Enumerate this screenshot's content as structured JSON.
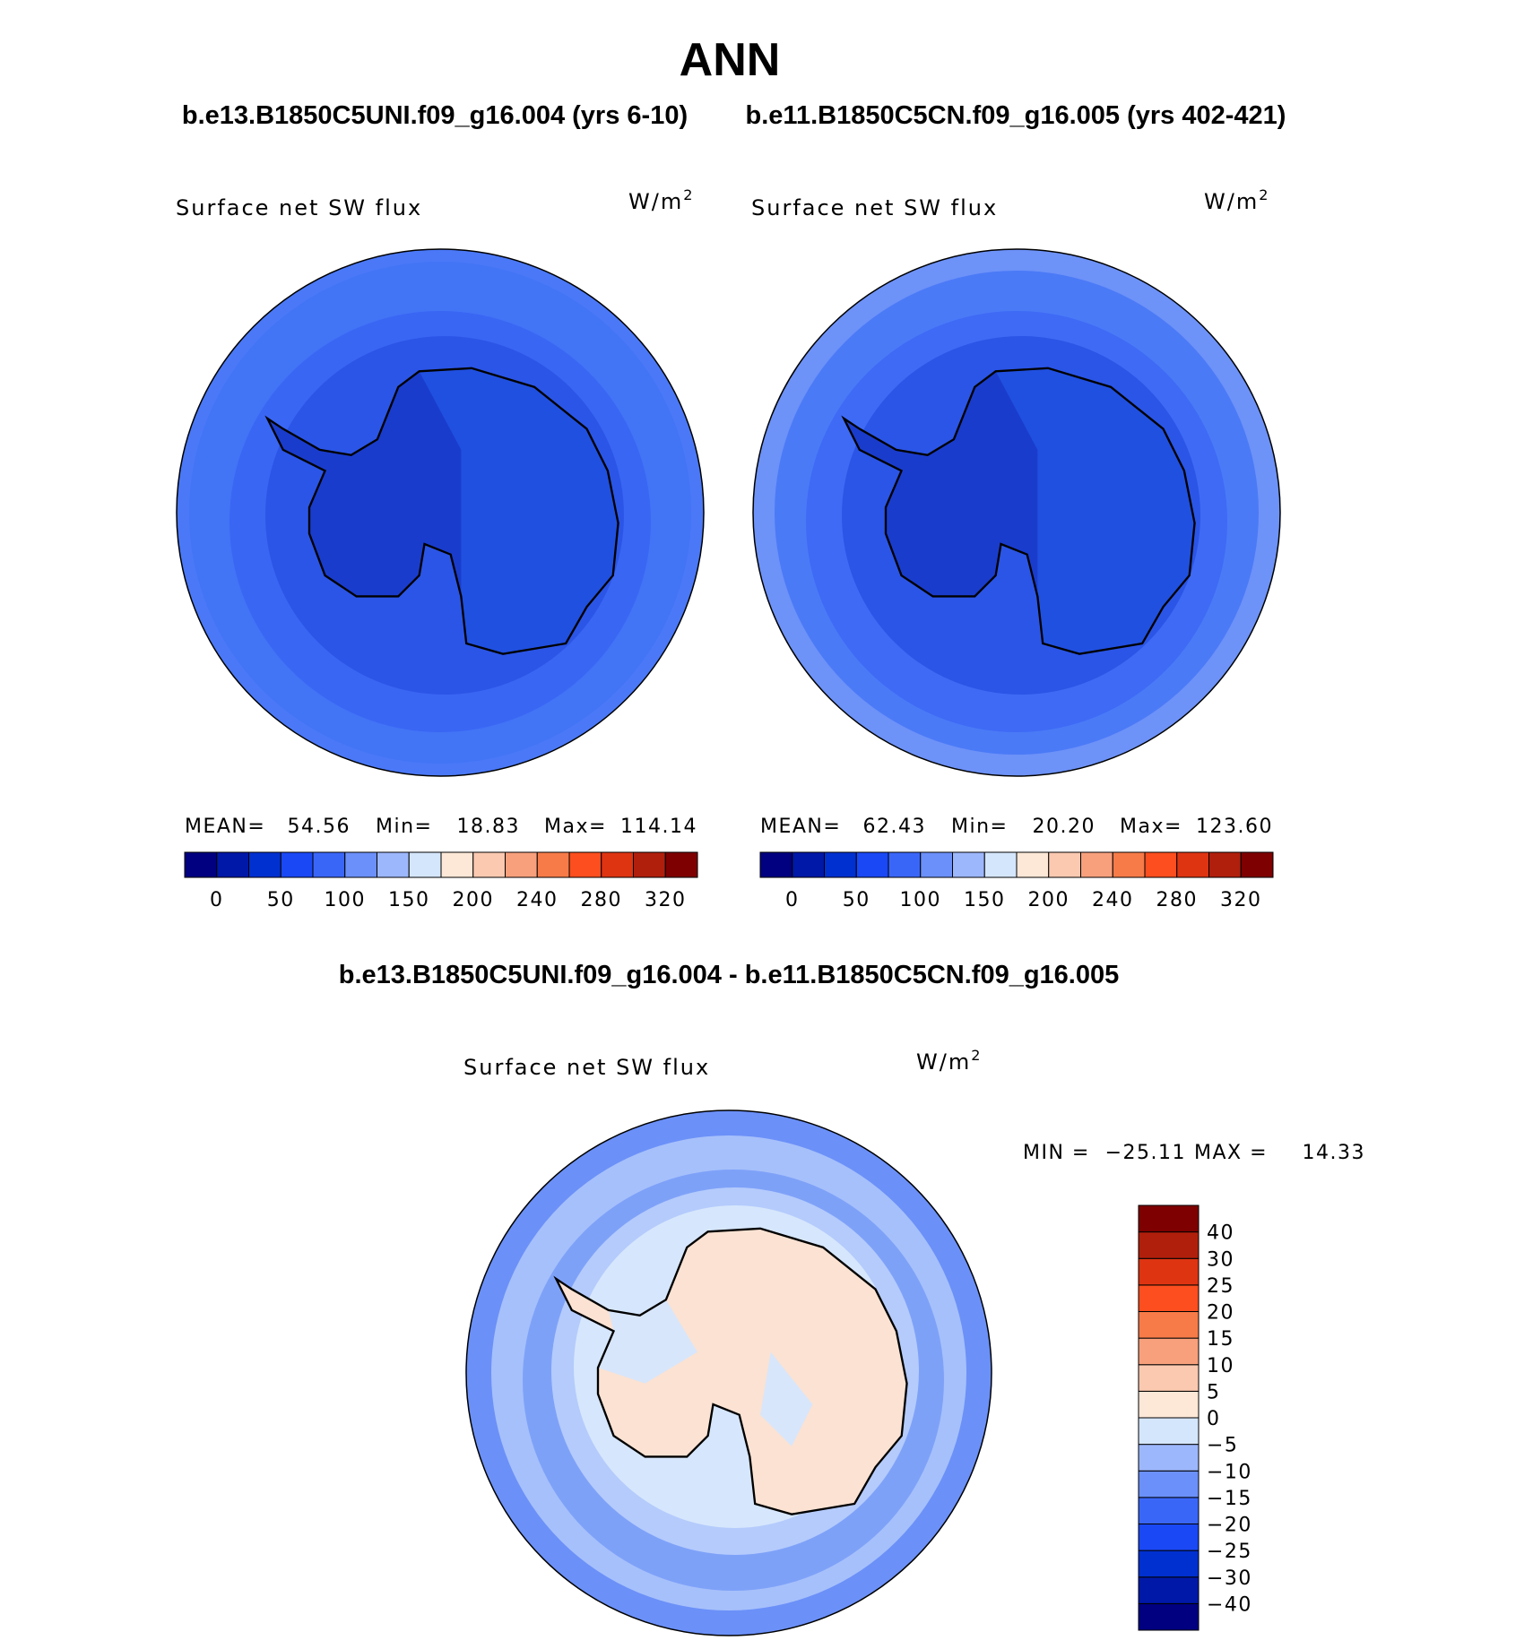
{
  "title": "ANN",
  "panels": [
    {
      "case_title": "b.e13.B1850C5UNI.f09_g16.004 (yrs 6-10)",
      "variable": "Surface net SW flux",
      "units": "W/m",
      "units_superscript": "2",
      "stats": [
        {
          "label": "MEAN=",
          "value": "54.56"
        },
        {
          "label": "Min=",
          "value": "18.83"
        },
        {
          "label": "Max=",
          "value": "114.14"
        }
      ],
      "colorbar_labels": [
        0,
        50,
        100,
        150,
        200,
        240,
        280,
        320
      ]
    },
    {
      "case_title": "b.e11.B1850C5CN.f09_g16.005 (yrs 402-421)",
      "variable": "Surface net SW flux",
      "units": "W/m",
      "units_superscript": "2",
      "stats": [
        {
          "label": "MEAN=",
          "value": "62.43"
        },
        {
          "label": "Min=",
          "value": "20.20"
        },
        {
          "label": "Max=",
          "value": "123.60"
        }
      ],
      "colorbar_labels": [
        0,
        50,
        100,
        150,
        200,
        240,
        280,
        320
      ]
    }
  ],
  "difference": {
    "title": "b.e13.B1850C5UNI.f09_g16.004 - b.e11.B1850C5CN.f09_g16.005",
    "variable": "Surface net SW flux",
    "units": "W/m",
    "units_superscript": "2",
    "stats": [
      {
        "label": "MIN =",
        "value": "−25.11"
      },
      {
        "label": "MAX =",
        "value": "14.33"
      }
    ],
    "colorbar_labels": [
      "40",
      "30",
      "25",
      "20",
      "15",
      "10",
      "5",
      "0",
      "−5",
      "−10",
      "−15",
      "−20",
      "−25",
      "−30",
      "−40"
    ]
  },
  "colorbar_colors": [
    "#000080",
    "#0018a8",
    "#0030d0",
    "#1a48f5",
    "#3a66f8",
    "#6b90fa",
    "#9db7fc",
    "#d4e6fc",
    "#fde7d6",
    "#fbc9b0",
    "#f8a07c",
    "#f77b48",
    "#fc4e1e",
    "#de3412",
    "#b01f0c",
    "#7e0000"
  ]
}
